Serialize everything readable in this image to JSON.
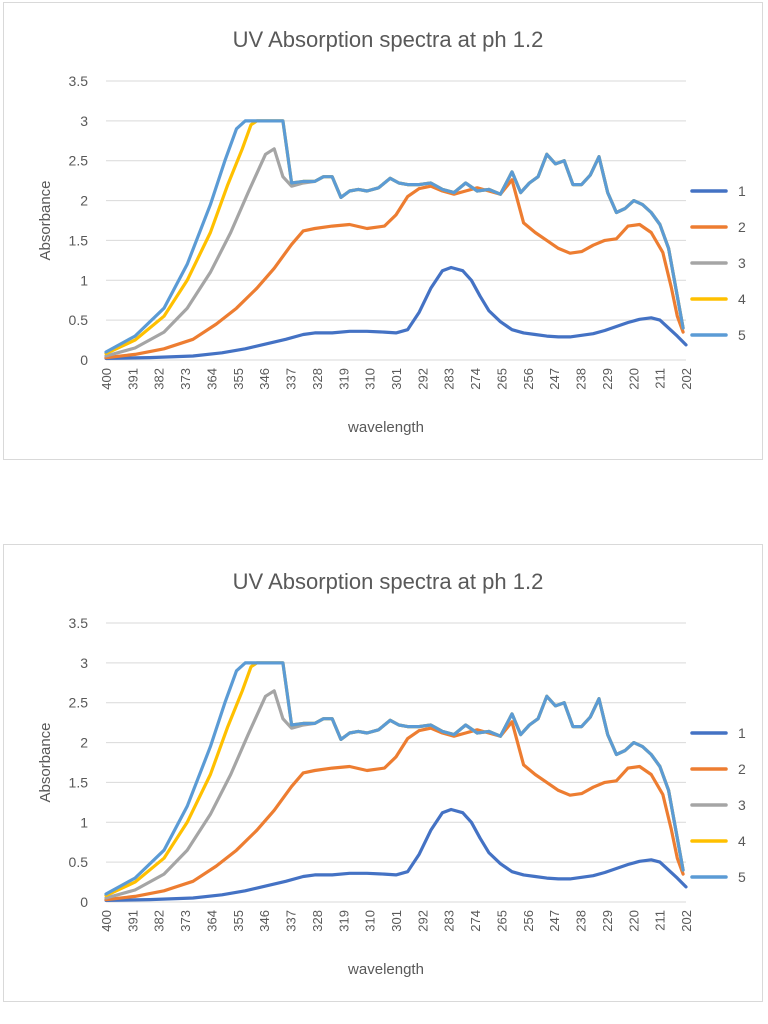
{
  "colors": {
    "series": [
      "#4472c4",
      "#ed7d31",
      "#a5a5a5",
      "#ffc000",
      "#5b9bd5"
    ],
    "grid": "#d9d9d9",
    "axis_text": "#595959",
    "title_text": "#595959"
  },
  "chart_data": [
    {
      "type": "line",
      "title": "UV Absorption spectra at ph 1.2",
      "xlabel": "wavelength",
      "ylabel": "Absorbance",
      "ylim": [
        0,
        3.5
      ],
      "yticks": [
        "0",
        "0.5",
        "1",
        "1.5",
        "2",
        "2.5",
        "3",
        "3.5"
      ],
      "xlim": [
        400,
        200
      ],
      "xtick_labels": [
        "400",
        "391",
        "382",
        "373",
        "364",
        "355",
        "346",
        "337",
        "328",
        "319",
        "310",
        "301",
        "292",
        "283",
        "274",
        "265",
        "256",
        "247",
        "238",
        "229",
        "220",
        "211",
        "202"
      ],
      "legend_position": "right",
      "grid": true,
      "series": [
        {
          "name": "1",
          "x": [
            400,
            385,
            370,
            360,
            352,
            345,
            338,
            332,
            328,
            322,
            316,
            310,
            304,
            300,
            296,
            292,
            288,
            284,
            281,
            277,
            274,
            271,
            268,
            264,
            260,
            256,
            252,
            248,
            244,
            240,
            236,
            232,
            228,
            224,
            220,
            216,
            212,
            209,
            206,
            203,
            200
          ],
          "y": [
            0.02,
            0.03,
            0.05,
            0.09,
            0.14,
            0.2,
            0.26,
            0.32,
            0.34,
            0.34,
            0.36,
            0.36,
            0.35,
            0.34,
            0.38,
            0.6,
            0.9,
            1.12,
            1.16,
            1.12,
            1.0,
            0.8,
            0.62,
            0.48,
            0.38,
            0.34,
            0.32,
            0.3,
            0.29,
            0.29,
            0.31,
            0.33,
            0.37,
            0.42,
            0.47,
            0.51,
            0.53,
            0.5,
            0.4,
            0.3,
            0.19
          ]
        },
        {
          "name": "2",
          "x": [
            400,
            390,
            380,
            370,
            362,
            355,
            348,
            342,
            336,
            332,
            328,
            322,
            316,
            310,
            304,
            300,
            296,
            292,
            288,
            284,
            280,
            276,
            272,
            268,
            264,
            260,
            256,
            252,
            248,
            244,
            240,
            236,
            232,
            228,
            224,
            220,
            216,
            212,
            208,
            205,
            203,
            201
          ],
          "y": [
            0.03,
            0.07,
            0.14,
            0.26,
            0.45,
            0.65,
            0.9,
            1.15,
            1.45,
            1.62,
            1.65,
            1.68,
            1.7,
            1.65,
            1.68,
            1.82,
            2.05,
            2.15,
            2.18,
            2.12,
            2.08,
            2.12,
            2.16,
            2.12,
            2.08,
            2.26,
            1.72,
            1.6,
            1.5,
            1.4,
            1.34,
            1.36,
            1.44,
            1.5,
            1.52,
            1.68,
            1.7,
            1.6,
            1.35,
            0.9,
            0.55,
            0.35
          ]
        },
        {
          "name": "3",
          "x": [
            400,
            390,
            380,
            372,
            364,
            357,
            351,
            345,
            342,
            339,
            336,
            332,
            328,
            325,
            322,
            319,
            316,
            313,
            310,
            306,
            302,
            299,
            296,
            292,
            288,
            284,
            280,
            276,
            272,
            268,
            264,
            260,
            257,
            254,
            251,
            248,
            245,
            242,
            239,
            236,
            233,
            230,
            227,
            224,
            221,
            218,
            215,
            212,
            209,
            206,
            203,
            201
          ],
          "y": [
            0.05,
            0.15,
            0.35,
            0.65,
            1.1,
            1.6,
            2.1,
            2.58,
            2.65,
            2.3,
            2.18,
            2.22,
            2.24,
            2.3,
            2.3,
            2.04,
            2.12,
            2.14,
            2.12,
            2.16,
            2.28,
            2.22,
            2.2,
            2.2,
            2.22,
            2.14,
            2.1,
            2.22,
            2.12,
            2.14,
            2.08,
            2.36,
            2.1,
            2.22,
            2.3,
            2.58,
            2.46,
            2.5,
            2.2,
            2.2,
            2.32,
            2.55,
            2.1,
            1.85,
            1.9,
            2.0,
            1.95,
            1.85,
            1.7,
            1.4,
            0.8,
            0.4
          ]
        },
        {
          "name": "4",
          "x": [
            400,
            390,
            380,
            372,
            364,
            358,
            353,
            350,
            348,
            345,
            342,
            339,
            336,
            332,
            328,
            325,
            322,
            319,
            316,
            313,
            310,
            306,
            302,
            299,
            296,
            292,
            288,
            284,
            280,
            276,
            272,
            268,
            264,
            260,
            257,
            254,
            251,
            248,
            245,
            242,
            239,
            236,
            233,
            230,
            227,
            224,
            221,
            218,
            215,
            212,
            209,
            206,
            203,
            201
          ],
          "y": [
            0.08,
            0.25,
            0.55,
            1.0,
            1.6,
            2.2,
            2.65,
            2.95,
            3.0,
            3.0,
            3.0,
            3.0,
            2.22,
            2.24,
            2.24,
            2.3,
            2.3,
            2.04,
            2.12,
            2.14,
            2.12,
            2.16,
            2.28,
            2.22,
            2.2,
            2.2,
            2.22,
            2.14,
            2.1,
            2.22,
            2.12,
            2.14,
            2.08,
            2.36,
            2.1,
            2.22,
            2.3,
            2.58,
            2.46,
            2.5,
            2.2,
            2.2,
            2.32,
            2.55,
            2.1,
            1.85,
            1.9,
            2.0,
            1.95,
            1.85,
            1.7,
            1.4,
            0.8,
            0.4
          ]
        },
        {
          "name": "5",
          "x": [
            400,
            390,
            380,
            372,
            364,
            359,
            355,
            352,
            349,
            346,
            342,
            339,
            336,
            332,
            328,
            325,
            322,
            319,
            316,
            313,
            310,
            306,
            302,
            299,
            296,
            292,
            288,
            284,
            280,
            276,
            272,
            268,
            264,
            260,
            257,
            254,
            251,
            248,
            245,
            242,
            239,
            236,
            233,
            230,
            227,
            224,
            221,
            218,
            215,
            212,
            209,
            206,
            203,
            201
          ],
          "y": [
            0.1,
            0.3,
            0.65,
            1.2,
            1.95,
            2.5,
            2.9,
            3.0,
            3.0,
            3.0,
            3.0,
            3.0,
            2.22,
            2.24,
            2.24,
            2.3,
            2.3,
            2.04,
            2.12,
            2.14,
            2.12,
            2.16,
            2.28,
            2.22,
            2.2,
            2.2,
            2.22,
            2.14,
            2.1,
            2.22,
            2.12,
            2.14,
            2.08,
            2.36,
            2.1,
            2.22,
            2.3,
            2.58,
            2.46,
            2.5,
            2.2,
            2.2,
            2.32,
            2.55,
            2.1,
            1.85,
            1.9,
            2.0,
            1.95,
            1.85,
            1.7,
            1.4,
            0.8,
            0.4
          ]
        }
      ]
    },
    {
      "type": "line",
      "title": "UV Absorption spectra at ph 1.2",
      "xlabel": "wavelength",
      "ylabel": "Absorbance",
      "ylim": [
        0,
        3.5
      ],
      "yticks": [
        "0",
        "0.5",
        "1",
        "1.5",
        "2",
        "2.5",
        "3",
        "3.5"
      ],
      "xlim": [
        400,
        200
      ],
      "xtick_labels": [
        "400",
        "391",
        "382",
        "373",
        "364",
        "355",
        "346",
        "337",
        "328",
        "319",
        "310",
        "301",
        "292",
        "283",
        "274",
        "265",
        "256",
        "247",
        "238",
        "229",
        "220",
        "211",
        "202"
      ],
      "legend_position": "right",
      "grid": true,
      "series": [
        {
          "name": "1",
          "x": [
            400,
            385,
            370,
            360,
            352,
            345,
            338,
            332,
            328,
            322,
            316,
            310,
            304,
            300,
            296,
            292,
            288,
            284,
            281,
            277,
            274,
            271,
            268,
            264,
            260,
            256,
            252,
            248,
            244,
            240,
            236,
            232,
            228,
            224,
            220,
            216,
            212,
            209,
            206,
            203,
            200
          ],
          "y": [
            0.02,
            0.03,
            0.05,
            0.09,
            0.14,
            0.2,
            0.26,
            0.32,
            0.34,
            0.34,
            0.36,
            0.36,
            0.35,
            0.34,
            0.38,
            0.6,
            0.9,
            1.12,
            1.16,
            1.12,
            1.0,
            0.8,
            0.62,
            0.48,
            0.38,
            0.34,
            0.32,
            0.3,
            0.29,
            0.29,
            0.31,
            0.33,
            0.37,
            0.42,
            0.47,
            0.51,
            0.53,
            0.5,
            0.4,
            0.3,
            0.19
          ]
        },
        {
          "name": "2",
          "x": [
            400,
            390,
            380,
            370,
            362,
            355,
            348,
            342,
            336,
            332,
            328,
            322,
            316,
            310,
            304,
            300,
            296,
            292,
            288,
            284,
            280,
            276,
            272,
            268,
            264,
            260,
            256,
            252,
            248,
            244,
            240,
            236,
            232,
            228,
            224,
            220,
            216,
            212,
            208,
            205,
            203,
            201
          ],
          "y": [
            0.03,
            0.07,
            0.14,
            0.26,
            0.45,
            0.65,
            0.9,
            1.15,
            1.45,
            1.62,
            1.65,
            1.68,
            1.7,
            1.65,
            1.68,
            1.82,
            2.05,
            2.15,
            2.18,
            2.12,
            2.08,
            2.12,
            2.16,
            2.12,
            2.08,
            2.26,
            1.72,
            1.6,
            1.5,
            1.4,
            1.34,
            1.36,
            1.44,
            1.5,
            1.52,
            1.68,
            1.7,
            1.6,
            1.35,
            0.9,
            0.55,
            0.35
          ]
        },
        {
          "name": "3",
          "x": [
            400,
            390,
            380,
            372,
            364,
            357,
            351,
            345,
            342,
            339,
            336,
            332,
            328,
            325,
            322,
            319,
            316,
            313,
            310,
            306,
            302,
            299,
            296,
            292,
            288,
            284,
            280,
            276,
            272,
            268,
            264,
            260,
            257,
            254,
            251,
            248,
            245,
            242,
            239,
            236,
            233,
            230,
            227,
            224,
            221,
            218,
            215,
            212,
            209,
            206,
            203,
            201
          ],
          "y": [
            0.05,
            0.15,
            0.35,
            0.65,
            1.1,
            1.6,
            2.1,
            2.58,
            2.65,
            2.3,
            2.18,
            2.22,
            2.24,
            2.3,
            2.3,
            2.04,
            2.12,
            2.14,
            2.12,
            2.16,
            2.28,
            2.22,
            2.2,
            2.2,
            2.22,
            2.14,
            2.1,
            2.22,
            2.12,
            2.14,
            2.08,
            2.36,
            2.1,
            2.22,
            2.3,
            2.58,
            2.46,
            2.5,
            2.2,
            2.2,
            2.32,
            2.55,
            2.1,
            1.85,
            1.9,
            2.0,
            1.95,
            1.85,
            1.7,
            1.4,
            0.8,
            0.4
          ]
        },
        {
          "name": "4",
          "x": [
            400,
            390,
            380,
            372,
            364,
            358,
            353,
            350,
            348,
            345,
            342,
            339,
            336,
            332,
            328,
            325,
            322,
            319,
            316,
            313,
            310,
            306,
            302,
            299,
            296,
            292,
            288,
            284,
            280,
            276,
            272,
            268,
            264,
            260,
            257,
            254,
            251,
            248,
            245,
            242,
            239,
            236,
            233,
            230,
            227,
            224,
            221,
            218,
            215,
            212,
            209,
            206,
            203,
            201
          ],
          "y": [
            0.08,
            0.25,
            0.55,
            1.0,
            1.6,
            2.2,
            2.65,
            2.95,
            3.0,
            3.0,
            3.0,
            3.0,
            2.22,
            2.24,
            2.24,
            2.3,
            2.3,
            2.04,
            2.12,
            2.14,
            2.12,
            2.16,
            2.28,
            2.22,
            2.2,
            2.2,
            2.22,
            2.14,
            2.1,
            2.22,
            2.12,
            2.14,
            2.08,
            2.36,
            2.1,
            2.22,
            2.3,
            2.58,
            2.46,
            2.5,
            2.2,
            2.2,
            2.32,
            2.55,
            2.1,
            1.85,
            1.9,
            2.0,
            1.95,
            1.85,
            1.7,
            1.4,
            0.8,
            0.4
          ]
        },
        {
          "name": "5",
          "x": [
            400,
            390,
            380,
            372,
            364,
            359,
            355,
            352,
            349,
            346,
            342,
            339,
            336,
            332,
            328,
            325,
            322,
            319,
            316,
            313,
            310,
            306,
            302,
            299,
            296,
            292,
            288,
            284,
            280,
            276,
            272,
            268,
            264,
            260,
            257,
            254,
            251,
            248,
            245,
            242,
            239,
            236,
            233,
            230,
            227,
            224,
            221,
            218,
            215,
            212,
            209,
            206,
            203,
            201
          ],
          "y": [
            0.1,
            0.3,
            0.65,
            1.2,
            1.95,
            2.5,
            2.9,
            3.0,
            3.0,
            3.0,
            3.0,
            3.0,
            2.22,
            2.24,
            2.24,
            2.3,
            2.3,
            2.04,
            2.12,
            2.14,
            2.12,
            2.16,
            2.28,
            2.22,
            2.2,
            2.2,
            2.22,
            2.14,
            2.1,
            2.22,
            2.12,
            2.14,
            2.08,
            2.36,
            2.1,
            2.22,
            2.3,
            2.58,
            2.46,
            2.5,
            2.2,
            2.2,
            2.32,
            2.55,
            2.1,
            1.85,
            1.9,
            2.0,
            1.95,
            1.85,
            1.7,
            1.4,
            0.8,
            0.4
          ]
        }
      ]
    }
  ]
}
